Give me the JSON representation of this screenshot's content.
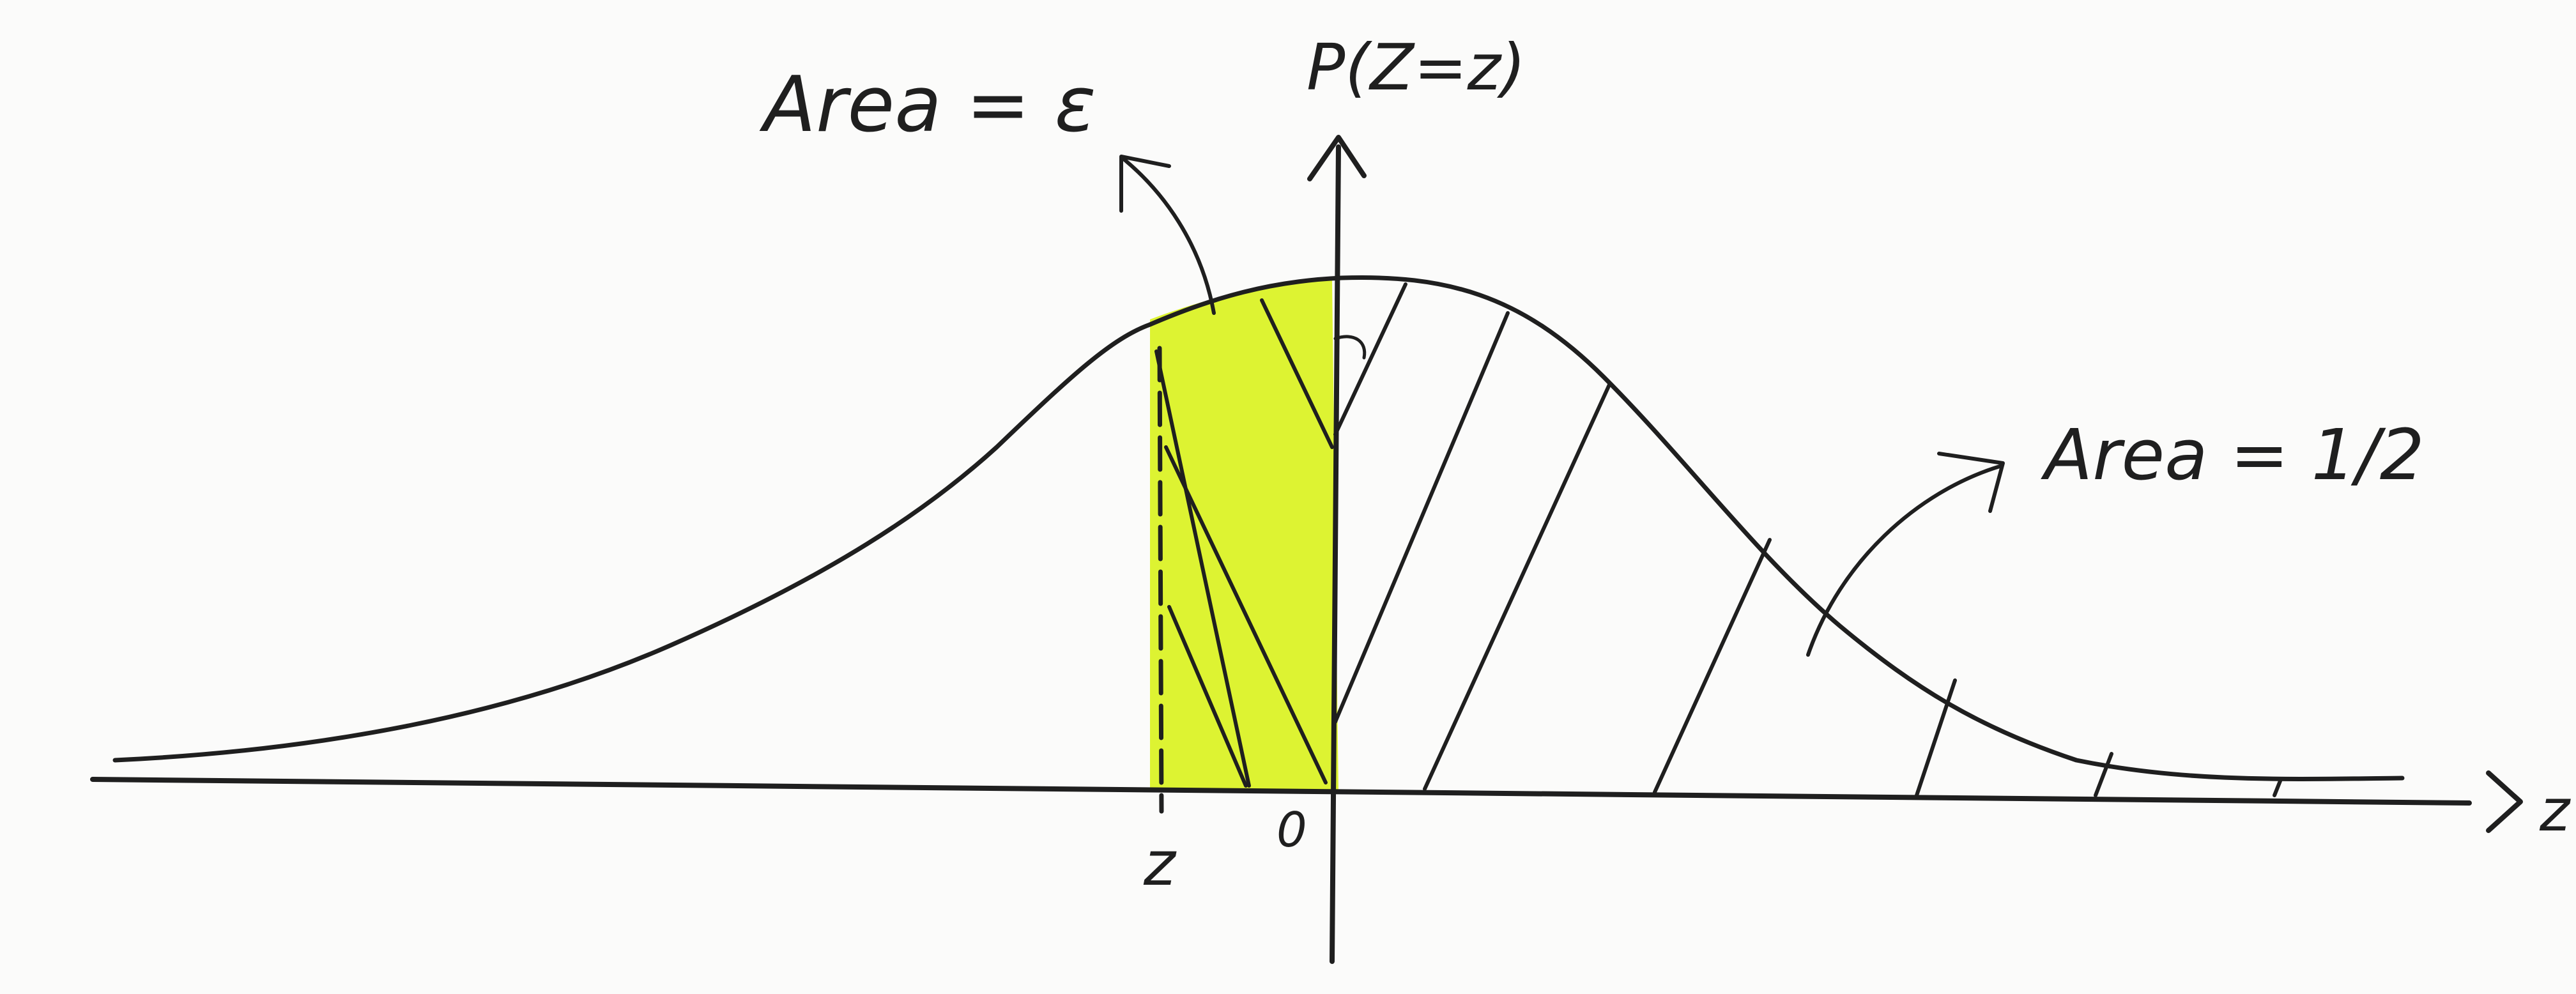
{
  "axes": {
    "y_label": "P(Z=z)",
    "x_label": "z",
    "origin_label": "0",
    "z_marker_label": "z"
  },
  "annotations": {
    "left_area": "Area = ε",
    "right_area": "Area = 1/2"
  },
  "colors": {
    "ink": "#1f1f1f",
    "highlight": "#d9f21c",
    "paper": "#fbfbfa"
  }
}
